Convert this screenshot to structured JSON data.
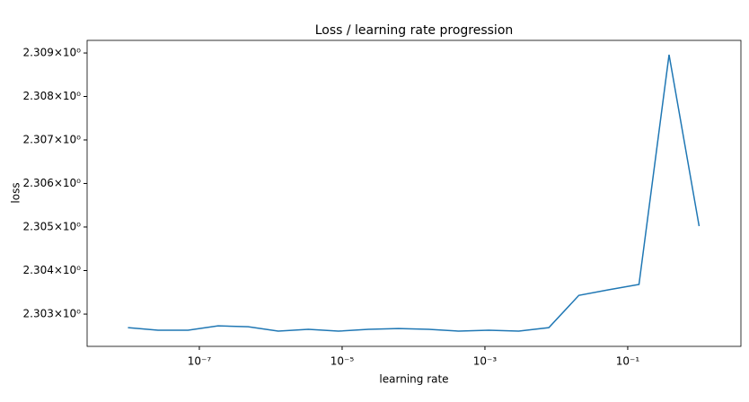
{
  "chart_data": {
    "type": "line",
    "title": "Loss / learning rate progression",
    "x_label": "learning rate",
    "y_label": "loss",
    "x_log": true,
    "y_log": true,
    "x": [
      1e-08,
      2.637e-08,
      6.952e-08,
      1.833e-07,
      4.833e-07,
      1.274e-06,
      3.36e-06,
      8.859e-06,
      2.336e-05,
      6.158e-05,
      0.0001624,
      0.0004281,
      0.001129,
      0.002976,
      0.007848,
      0.02069,
      0.05456,
      0.1438,
      0.3793,
      1
    ],
    "series": [
      {
        "color": "#1f77b4",
        "values": [
          2.30269,
          2.30263,
          2.30263,
          2.30273,
          2.30271,
          2.30261,
          2.30265,
          2.30261,
          2.30265,
          2.30267,
          2.30265,
          2.30261,
          2.30263,
          2.30261,
          2.30269,
          2.30343,
          2.30356,
          2.30368,
          2.30896,
          2.30502
        ]
      }
    ],
    "xlim": [
      2.68e-09,
      3.85
    ],
    "ylim": [
      2.30226,
      2.30929
    ],
    "xticks": [
      {
        "value": 1e-07,
        "label": "10⁻⁷"
      },
      {
        "value": 1e-05,
        "label": "10⁻⁵"
      },
      {
        "value": 0.001,
        "label": "10⁻³"
      },
      {
        "value": 0.1,
        "label": "10⁻¹"
      }
    ],
    "yticks": [
      {
        "value": 2.303,
        "label": "2.303×10⁰"
      },
      {
        "value": 2.304,
        "label": "2.304×10⁰"
      },
      {
        "value": 2.305,
        "label": "2.305×10⁰"
      },
      {
        "value": 2.306,
        "label": "2.306×10⁰"
      },
      {
        "value": 2.307,
        "label": "2.307×10⁰"
      },
      {
        "value": 2.308,
        "label": "2.308×10⁰"
      },
      {
        "value": 2.309,
        "label": "2.309×10⁰"
      }
    ]
  }
}
